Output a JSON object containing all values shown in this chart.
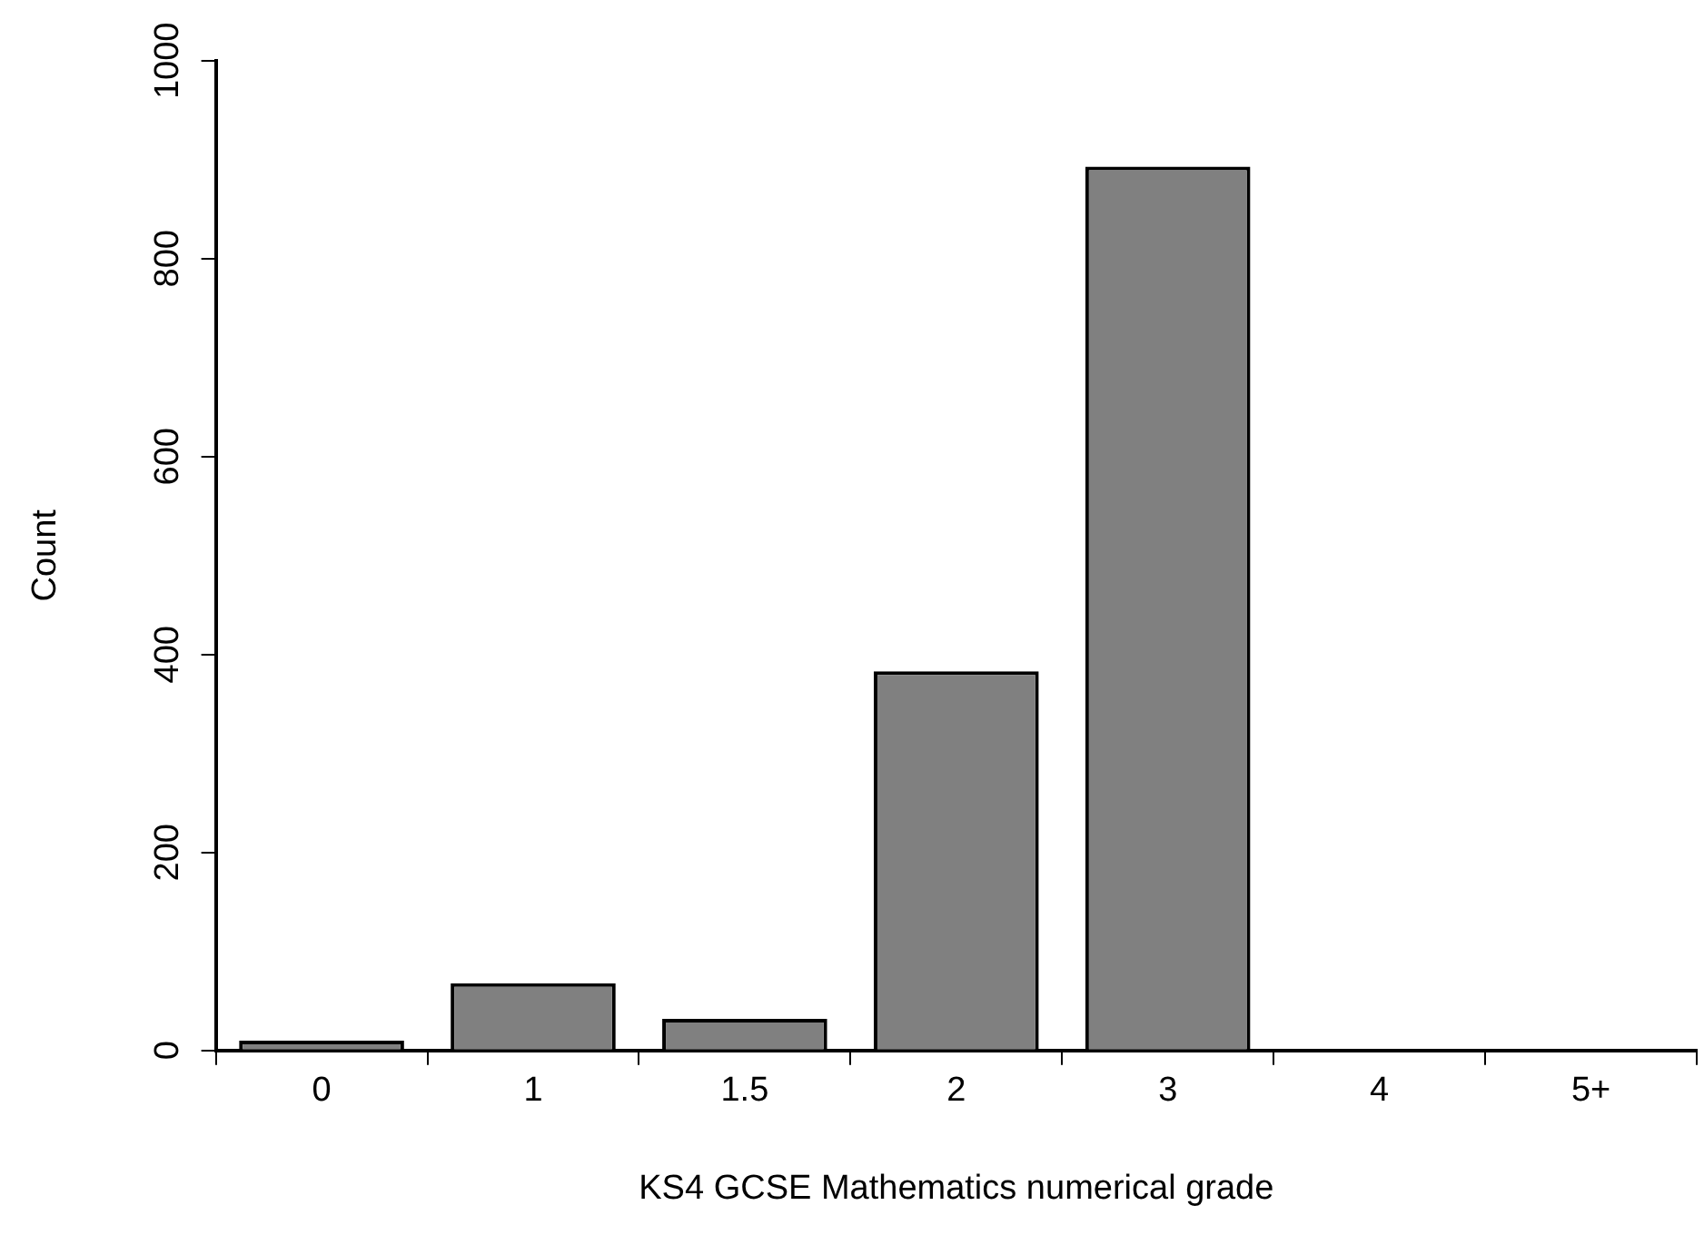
{
  "chart_data": {
    "type": "bar",
    "xlabel": "KS4 GCSE Mathematics numerical grade",
    "ylabel": "Count",
    "categories": [
      "0",
      "1",
      "1.5",
      "2",
      "3",
      "4",
      "5+"
    ],
    "values": [
      10,
      68,
      32,
      383,
      893,
      0,
      0
    ],
    "color": "#808080",
    "ylim": [
      0,
      1000
    ],
    "yticks": [
      0,
      200,
      400,
      600,
      800,
      1000
    ],
    "grid": false,
    "legend": false
  }
}
